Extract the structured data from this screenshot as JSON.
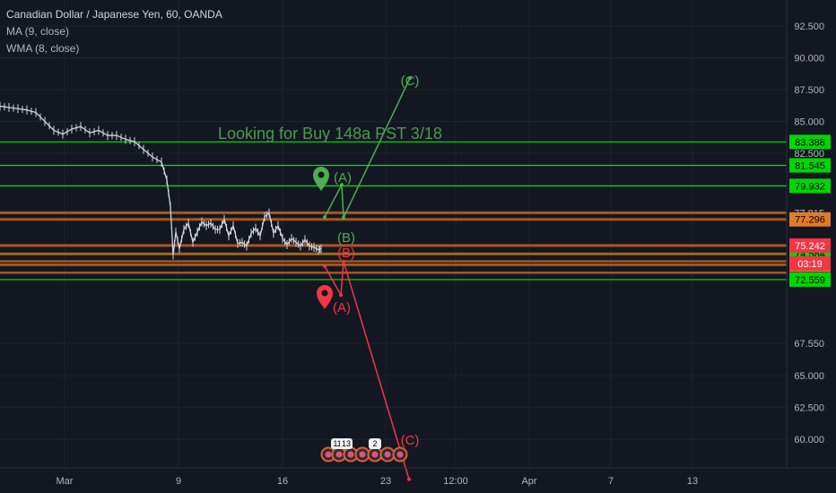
{
  "chart_data": {
    "type": "line",
    "title": "Canadian Dollar / Japanese Yen, 60, OANDA",
    "indicators": [
      "MA (9, close)",
      "WMA (8, close)"
    ],
    "annotation": "Looking for Buy 148a PST 3/18",
    "countdown": "03:19",
    "grid": true,
    "ylim": [
      57.75,
      94.55
    ],
    "xlim": [
      0,
      932
    ],
    "y_ticks": [
      "92.500",
      "90.000",
      "87.500",
      "85.000",
      "82.500",
      "77.815",
      "67.550",
      "65.000",
      "62.500",
      "60.000"
    ],
    "y_tick_values": [
      92.5,
      90.0,
      87.5,
      85.0,
      82.5,
      77.815,
      67.55,
      65.0,
      62.5,
      60.0
    ],
    "x_ticks": [
      {
        "label": "Mar",
        "x": 72
      },
      {
        "label": "9",
        "x": 199
      },
      {
        "label": "16",
        "x": 315
      },
      {
        "label": "23",
        "x": 430
      },
      {
        "label": "12:00",
        "x": 508
      },
      {
        "label": "Apr",
        "x": 590
      },
      {
        "label": "7",
        "x": 681
      },
      {
        "label": "13",
        "x": 772
      }
    ],
    "green_levels": [
      {
        "value": 83.388,
        "label": "83.388"
      },
      {
        "value": 81.545,
        "label": "81.545"
      },
      {
        "value": 79.932,
        "label": "79.932"
      },
      {
        "value": 74.584,
        "label": "74.584"
      },
      {
        "value": 72.559,
        "label": "72.559"
      }
    ],
    "orange_levels": [
      {
        "value": 77.296,
        "label": "77.296"
      },
      {
        "value": 73.728,
        "label": "73.728"
      },
      {
        "value": 75.242,
        "label": "75.242"
      }
    ],
    "current_price": {
      "value": 75.242,
      "label": "75.242",
      "color": "#f23645"
    },
    "price_series": {
      "name": "",
      "x": [
        0,
        10,
        20,
        30,
        40,
        50,
        60,
        70,
        80,
        90,
        100,
        110,
        120,
        130,
        140,
        150,
        160,
        170,
        180,
        186,
        190,
        193,
        196,
        200,
        205,
        210,
        215,
        220,
        225,
        230,
        235,
        240,
        245,
        250,
        255,
        260,
        265,
        270,
        275,
        280,
        285,
        290,
        295,
        300,
        305,
        310,
        315,
        320,
        325,
        330,
        335,
        340,
        345,
        350,
        355,
        358
      ],
      "y": [
        86.2,
        86.1,
        86.0,
        85.9,
        85.7,
        85.0,
        84.3,
        84.0,
        84.4,
        84.6,
        84.1,
        84.3,
        83.9,
        83.9,
        83.6,
        83.4,
        82.8,
        82.2,
        81.8,
        80.4,
        78.3,
        74.5,
        76.3,
        75.0,
        76.5,
        77.0,
        75.5,
        76.3,
        77.1,
        76.8,
        77.0,
        76.5,
        76.5,
        77.3,
        76.0,
        76.8,
        75.4,
        75.5,
        75.2,
        76.2,
        76.6,
        76.0,
        77.5,
        77.8,
        76.2,
        76.8,
        75.8,
        75.3,
        75.8,
        75.5,
        75.2,
        75.7,
        75.2,
        75.1,
        74.9,
        75.0
      ]
    },
    "bull_wave": {
      "x": [
        362,
        381,
        383,
        457
      ],
      "y": [
        77.48,
        80.02,
        77.44,
        88.4
      ],
      "labels": [
        "(A)",
        "(B)",
        "(C)"
      ],
      "color": "#4caf50"
    },
    "bear_wave": {
      "x": [
        362,
        380,
        383,
        456
      ],
      "y": [
        73.62,
        71.35,
        73.98,
        56.86
      ],
      "labels": [
        "(A)",
        "(B)",
        "(C)"
      ],
      "color": "#f23645"
    },
    "event_badges": [
      "11",
      "13",
      "2"
    ],
    "colors": {
      "background": "#131722",
      "grid": "#1e222d",
      "candles": "#d1d4dc",
      "green_line": "#4caf50",
      "green_level": "#00e600",
      "orange_level": "#c0631c",
      "text": "#b2b5be",
      "annotation": "#4c9a4f",
      "label_orange": "#e07b28",
      "label_green": "#00d600"
    }
  }
}
